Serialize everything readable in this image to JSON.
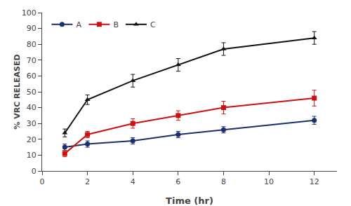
{
  "chart_data": {
    "type": "line",
    "xlabel": "Time (hr)",
    "ylabel": "% VRC RELEASED",
    "x": [
      1,
      2,
      4,
      6,
      8,
      12
    ],
    "series": [
      {
        "name": "A",
        "color": "#1a2f6e",
        "marker": "circle",
        "values": [
          15,
          17,
          19,
          23,
          26,
          32
        ],
        "errors": [
          2,
          2,
          2,
          2,
          2,
          2.5
        ]
      },
      {
        "name": "B",
        "color": "#cc1111",
        "marker": "square",
        "values": [
          11,
          23,
          30,
          35,
          40,
          46
        ],
        "errors": [
          2,
          2,
          3,
          3,
          4,
          5
        ]
      },
      {
        "name": "C",
        "color": "#111111",
        "marker": "triangle-up",
        "values": [
          24,
          45,
          57,
          67,
          77,
          84
        ],
        "errors": [
          2.5,
          3,
          4,
          4,
          4,
          4
        ]
      }
    ],
    "xlim": [
      0,
      13
    ],
    "ylim": [
      0,
      100
    ],
    "xticks": [
      0,
      2,
      4,
      6,
      8,
      10,
      12
    ],
    "yticks": [
      0,
      10,
      20,
      30,
      40,
      50,
      60,
      70,
      80,
      90,
      100
    ],
    "grid": false,
    "legend": "upper left"
  }
}
